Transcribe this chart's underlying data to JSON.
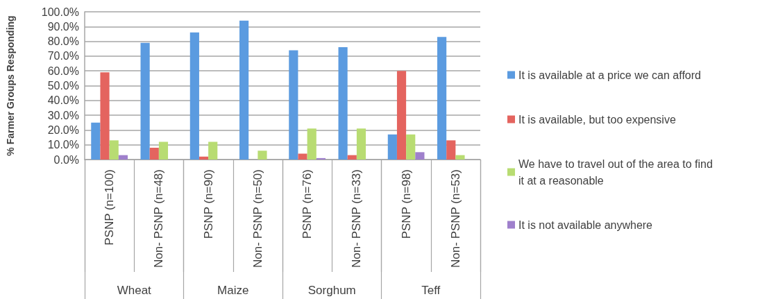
{
  "chart_data": {
    "type": "bar",
    "ylabel": "% Farmer Groups Responding",
    "categories": [
      "PSNP (n=100)",
      "Non- PSNP (n=48)",
      "PSNP (n=90)",
      "Non- PSNP (n=50)",
      "PSNP (n=76)",
      "Non- PSNP (n=33)",
      "PSNP (n=98)",
      "Non- PSNP (n=53)"
    ],
    "annotations": [
      "Wheat",
      "Maize",
      "Sorghum",
      "Teff"
    ],
    "series": [
      {
        "name": "It is available at a price we can afford",
        "color": "#5b9be0",
        "values": [
          25,
          79,
          86,
          94,
          74,
          76,
          17,
          83
        ]
      },
      {
        "name": "It is available, but too expensive",
        "color": "#e4645f",
        "values": [
          59,
          8,
          2,
          0,
          4,
          3,
          60,
          13
        ]
      },
      {
        "name": "We have to travel out of the area to find it at a reasonable",
        "color": "#b8dc72",
        "values": [
          13,
          12,
          12,
          6,
          21,
          21,
          17,
          3
        ]
      },
      {
        "name": "It is not available anywhere",
        "color": "#9f80cc",
        "values": [
          3,
          0,
          0,
          0,
          1,
          0,
          5,
          0
        ]
      }
    ],
    "ylim": [
      0,
      100
    ],
    "yticks": [
      {
        "value": 0,
        "label": "0.0%"
      },
      {
        "value": 10,
        "label": "10.0%"
      },
      {
        "value": 20,
        "label": "20.0%"
      },
      {
        "value": 30,
        "label": "30.0%"
      },
      {
        "value": 40,
        "label": "40.0%"
      },
      {
        "value": 50,
        "label": "50.0%"
      },
      {
        "value": 60,
        "label": "60.0%"
      },
      {
        "value": 70,
        "label": "70.0%"
      },
      {
        "value": 80,
        "label": "80.0%"
      },
      {
        "value": 90,
        "label": "90.0%"
      },
      {
        "value": 100,
        "label": "100.0%"
      }
    ],
    "grid": "y",
    "legend": "right"
  }
}
